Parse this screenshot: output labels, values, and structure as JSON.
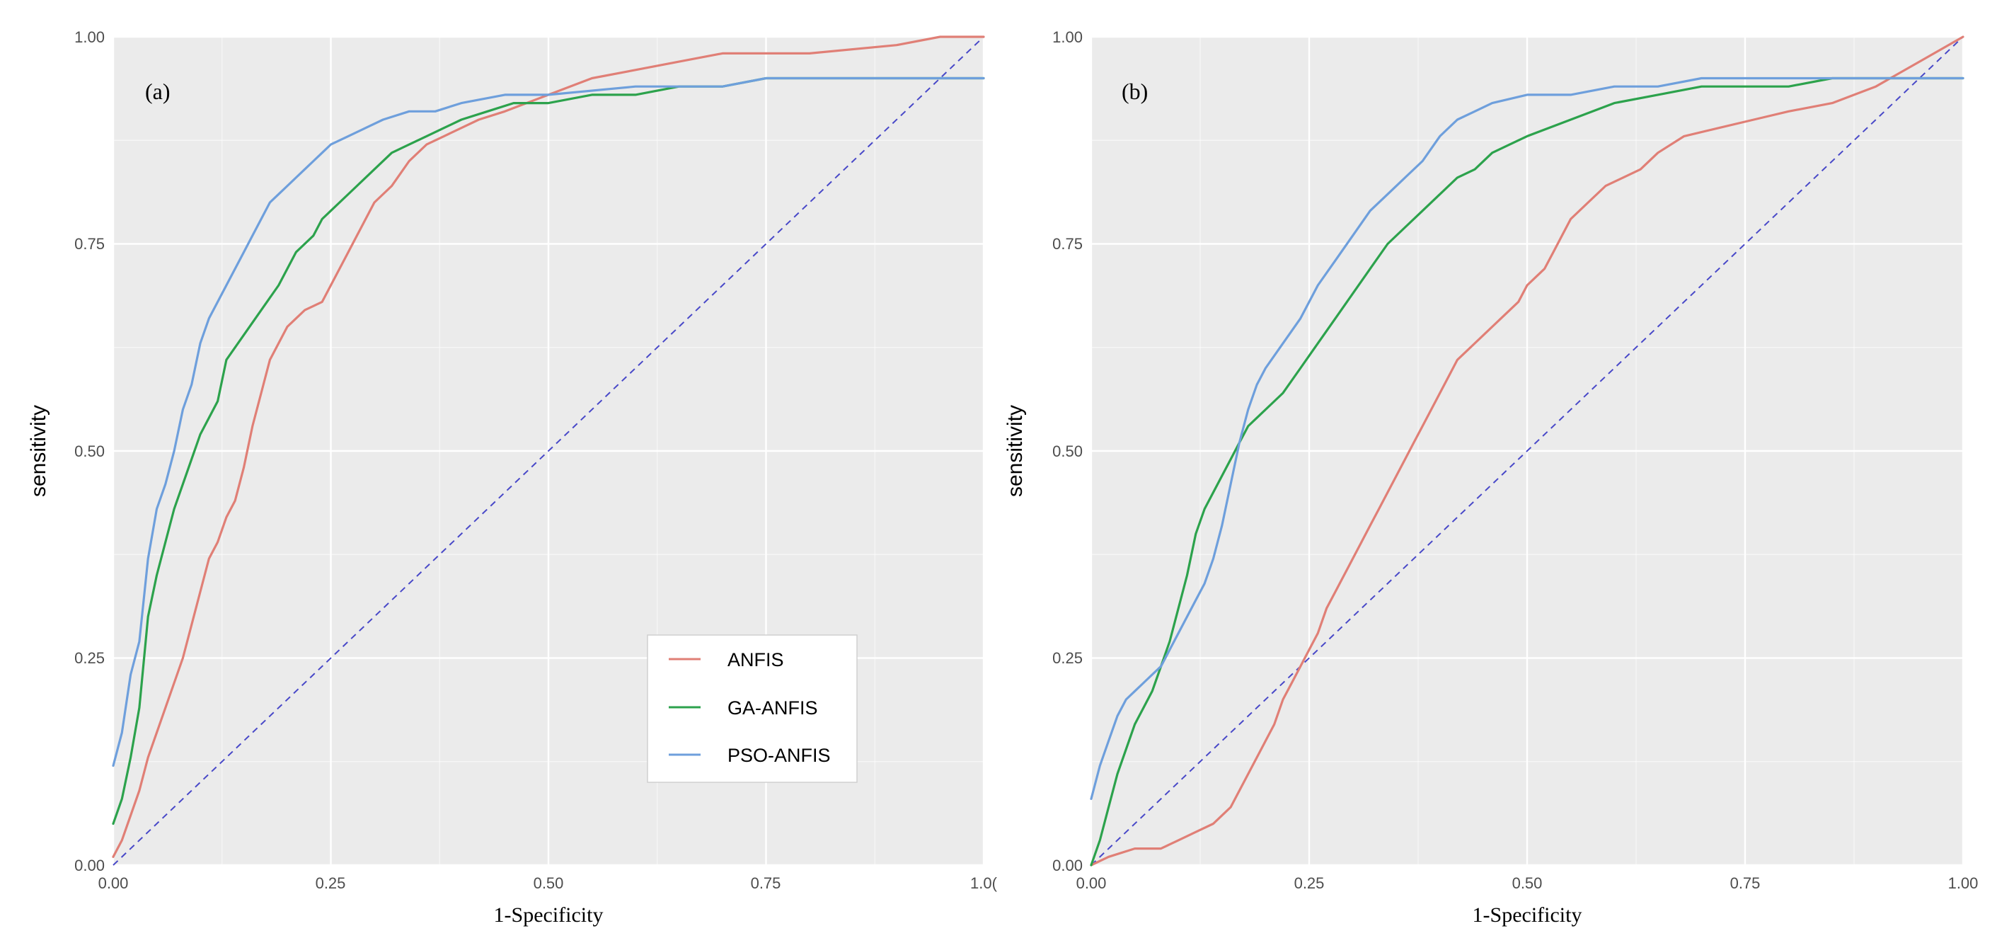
{
  "colors": {
    "panel_bg": "#EBEBEB",
    "grid": "#FFFFFF",
    "anfis": "#E07F76",
    "ga_anfis": "#2CA24C",
    "pso_anfis": "#6E9FDC",
    "diagonal": "#4848C8",
    "tick_text": "#4D4D4D"
  },
  "chart_data": [
    {
      "type": "line",
      "panel_label": "(a)",
      "xlabel": "1-Specificity",
      "ylabel": "sensitivity",
      "xlim": [
        0,
        1
      ],
      "ylim": [
        0,
        1
      ],
      "x_tick_labels": [
        "0.00",
        "0.25",
        "0.50",
        "0.75",
        "1.0("
      ],
      "y_tick_labels": [
        "0.00",
        "0.25",
        "0.50",
        "0.75",
        "1.00"
      ],
      "grid": true,
      "reference_line": "dashed diagonal",
      "legend": {
        "position": "bottom-right",
        "entries": [
          "ANFIS",
          "GA-ANFIS",
          "PSO-ANFIS"
        ]
      },
      "series": [
        {
          "name": "ANFIS",
          "x": [
            0,
            0.01,
            0.02,
            0.03,
            0.04,
            0.05,
            0.06,
            0.07,
            0.08,
            0.09,
            0.1,
            0.11,
            0.12,
            0.13,
            0.14,
            0.15,
            0.16,
            0.17,
            0.18,
            0.19,
            0.2,
            0.21,
            0.22,
            0.24,
            0.25,
            0.26,
            0.27,
            0.28,
            0.29,
            0.3,
            0.32,
            0.34,
            0.36,
            0.38,
            0.4,
            0.42,
            0.45,
            0.5,
            0.55,
            0.6,
            0.65,
            0.7,
            0.8,
            0.9,
            0.95,
            1.0
          ],
          "y": [
            0.01,
            0.03,
            0.06,
            0.09,
            0.13,
            0.16,
            0.19,
            0.22,
            0.25,
            0.29,
            0.33,
            0.37,
            0.39,
            0.42,
            0.44,
            0.48,
            0.53,
            0.57,
            0.61,
            0.63,
            0.65,
            0.66,
            0.67,
            0.68,
            0.7,
            0.72,
            0.74,
            0.76,
            0.78,
            0.8,
            0.82,
            0.85,
            0.87,
            0.88,
            0.89,
            0.9,
            0.91,
            0.93,
            0.95,
            0.96,
            0.97,
            0.98,
            0.98,
            0.99,
            1.0,
            1.0
          ]
        },
        {
          "name": "GA-ANFIS",
          "x": [
            0,
            0.01,
            0.02,
            0.03,
            0.04,
            0.05,
            0.06,
            0.07,
            0.08,
            0.09,
            0.1,
            0.12,
            0.13,
            0.15,
            0.17,
            0.19,
            0.2,
            0.21,
            0.22,
            0.23,
            0.24,
            0.25,
            0.26,
            0.28,
            0.3,
            0.32,
            0.34,
            0.36,
            0.38,
            0.4,
            0.43,
            0.46,
            0.5,
            0.55,
            0.6,
            0.65,
            0.7,
            0.75,
            0.76,
            1.0
          ],
          "y": [
            0.05,
            0.08,
            0.13,
            0.19,
            0.3,
            0.35,
            0.39,
            0.43,
            0.46,
            0.49,
            0.52,
            0.56,
            0.61,
            0.64,
            0.67,
            0.7,
            0.72,
            0.74,
            0.75,
            0.76,
            0.78,
            0.79,
            0.8,
            0.82,
            0.84,
            0.86,
            0.87,
            0.88,
            0.89,
            0.9,
            0.91,
            0.92,
            0.92,
            0.93,
            0.93,
            0.94,
            0.94,
            0.95,
            0.95,
            0.95
          ]
        },
        {
          "name": "PSO-ANFIS",
          "x": [
            0,
            0.01,
            0.02,
            0.03,
            0.04,
            0.05,
            0.06,
            0.07,
            0.08,
            0.09,
            0.1,
            0.11,
            0.12,
            0.13,
            0.14,
            0.15,
            0.16,
            0.17,
            0.18,
            0.19,
            0.2,
            0.21,
            0.22,
            0.23,
            0.24,
            0.25,
            0.27,
            0.29,
            0.31,
            0.34,
            0.37,
            0.4,
            0.45,
            0.5,
            0.6,
            0.7,
            0.75,
            0.8,
            0.9,
            1.0
          ],
          "y": [
            0.12,
            0.16,
            0.23,
            0.27,
            0.37,
            0.43,
            0.46,
            0.5,
            0.55,
            0.58,
            0.63,
            0.66,
            0.68,
            0.7,
            0.72,
            0.74,
            0.76,
            0.78,
            0.8,
            0.81,
            0.82,
            0.83,
            0.84,
            0.85,
            0.86,
            0.87,
            0.88,
            0.89,
            0.9,
            0.91,
            0.91,
            0.92,
            0.93,
            0.93,
            0.94,
            0.94,
            0.95,
            0.95,
            0.95,
            0.95
          ]
        }
      ]
    },
    {
      "type": "line",
      "panel_label": "(b)",
      "xlabel": "1-Specificity",
      "ylabel": "sensitivity",
      "xlim": [
        0,
        1
      ],
      "ylim": [
        0,
        1
      ],
      "x_tick_labels": [
        "0.00",
        "0.25",
        "0.50",
        "0.75",
        "1.00"
      ],
      "y_tick_labels": [
        "0.00",
        "0.25",
        "0.50",
        "0.75",
        "1.00"
      ],
      "grid": true,
      "reference_line": "dashed diagonal",
      "legend": null,
      "series": [
        {
          "name": "ANFIS",
          "x": [
            0,
            0.02,
            0.05,
            0.08,
            0.1,
            0.12,
            0.14,
            0.15,
            0.16,
            0.17,
            0.18,
            0.19,
            0.2,
            0.21,
            0.22,
            0.23,
            0.24,
            0.25,
            0.26,
            0.27,
            0.28,
            0.29,
            0.3,
            0.31,
            0.32,
            0.33,
            0.34,
            0.35,
            0.36,
            0.37,
            0.38,
            0.39,
            0.4,
            0.41,
            0.42,
            0.43,
            0.44,
            0.45,
            0.46,
            0.47,
            0.48,
            0.49,
            0.5,
            0.51,
            0.52,
            0.53,
            0.54,
            0.55,
            0.57,
            0.59,
            0.61,
            0.63,
            0.65,
            0.68,
            0.72,
            0.76,
            0.8,
            0.85,
            0.9,
            0.95,
            1.0
          ],
          "y": [
            0,
            0.01,
            0.02,
            0.02,
            0.03,
            0.04,
            0.05,
            0.06,
            0.07,
            0.09,
            0.11,
            0.13,
            0.15,
            0.17,
            0.2,
            0.22,
            0.24,
            0.26,
            0.28,
            0.31,
            0.33,
            0.35,
            0.37,
            0.39,
            0.41,
            0.43,
            0.45,
            0.47,
            0.49,
            0.51,
            0.53,
            0.55,
            0.57,
            0.59,
            0.61,
            0.62,
            0.63,
            0.64,
            0.65,
            0.66,
            0.67,
            0.68,
            0.7,
            0.71,
            0.72,
            0.74,
            0.76,
            0.78,
            0.8,
            0.82,
            0.83,
            0.84,
            0.86,
            0.88,
            0.89,
            0.9,
            0.91,
            0.92,
            0.94,
            0.97,
            1.0
          ]
        },
        {
          "name": "GA-ANFIS",
          "x": [
            0,
            0.01,
            0.02,
            0.03,
            0.04,
            0.05,
            0.06,
            0.07,
            0.08,
            0.09,
            0.1,
            0.11,
            0.12,
            0.13,
            0.14,
            0.15,
            0.16,
            0.17,
            0.18,
            0.19,
            0.2,
            0.22,
            0.24,
            0.26,
            0.28,
            0.3,
            0.32,
            0.34,
            0.36,
            0.38,
            0.4,
            0.42,
            0.44,
            0.46,
            0.48,
            0.5,
            0.55,
            0.6,
            0.65,
            0.7,
            0.8,
            0.85,
            1.0
          ],
          "y": [
            0,
            0.03,
            0.07,
            0.11,
            0.14,
            0.17,
            0.19,
            0.21,
            0.24,
            0.27,
            0.31,
            0.35,
            0.4,
            0.43,
            0.45,
            0.47,
            0.49,
            0.51,
            0.53,
            0.54,
            0.55,
            0.57,
            0.6,
            0.63,
            0.66,
            0.69,
            0.72,
            0.75,
            0.77,
            0.79,
            0.81,
            0.83,
            0.84,
            0.86,
            0.87,
            0.88,
            0.9,
            0.92,
            0.93,
            0.94,
            0.94,
            0.95,
            0.95
          ]
        },
        {
          "name": "PSO-ANFIS",
          "x": [
            0,
            0.01,
            0.02,
            0.03,
            0.04,
            0.05,
            0.06,
            0.07,
            0.08,
            0.09,
            0.1,
            0.11,
            0.12,
            0.13,
            0.14,
            0.15,
            0.16,
            0.17,
            0.18,
            0.19,
            0.2,
            0.22,
            0.24,
            0.26,
            0.28,
            0.3,
            0.32,
            0.34,
            0.36,
            0.38,
            0.4,
            0.42,
            0.44,
            0.46,
            0.5,
            0.55,
            0.6,
            0.65,
            0.7,
            0.85,
            1.0
          ],
          "y": [
            0.08,
            0.12,
            0.15,
            0.18,
            0.2,
            0.21,
            0.22,
            0.23,
            0.24,
            0.26,
            0.28,
            0.3,
            0.32,
            0.34,
            0.37,
            0.41,
            0.46,
            0.51,
            0.55,
            0.58,
            0.6,
            0.63,
            0.66,
            0.7,
            0.73,
            0.76,
            0.79,
            0.81,
            0.83,
            0.85,
            0.88,
            0.9,
            0.91,
            0.92,
            0.93,
            0.93,
            0.94,
            0.94,
            0.95,
            0.95,
            0.95
          ]
        }
      ]
    }
  ]
}
